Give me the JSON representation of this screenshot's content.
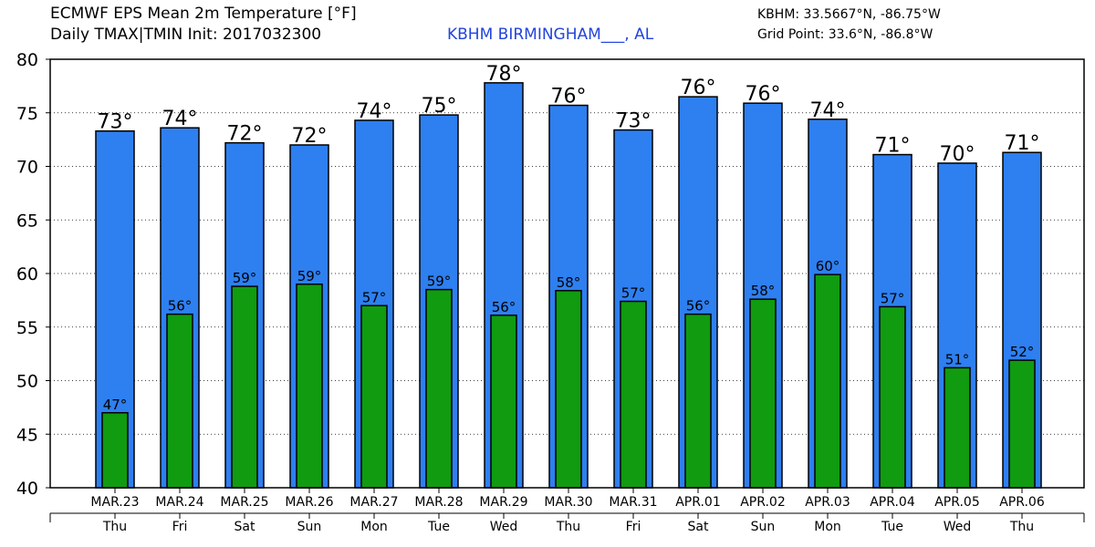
{
  "header": {
    "title_line1": "ECMWF EPS Mean 2m Temperature [°F]",
    "title_line2": "Daily TMAX|TMIN Init: 2017032300",
    "station": "KBHM BIRMINGHAM___, AL",
    "coords_station": "KBHM: 33.5667°N, -86.75°W",
    "coords_grid": "Grid Point: 33.6°N, -86.8°W"
  },
  "chart_data": {
    "type": "bar",
    "categories": [
      "MAR.23",
      "MAR.24",
      "MAR.25",
      "MAR.26",
      "MAR.27",
      "MAR.28",
      "MAR.29",
      "MAR.30",
      "MAR.31",
      "APR.01",
      "APR.02",
      "APR.03",
      "APR.04",
      "APR.05",
      "APR.06"
    ],
    "weekdays": [
      "Thu",
      "Fri",
      "Sat",
      "Sun",
      "Mon",
      "Tue",
      "Wed",
      "Thu",
      "Fri",
      "Sat",
      "Sun",
      "Mon",
      "Tue",
      "Wed",
      "Thu"
    ],
    "series": [
      {
        "values": [
          73.3,
          73.6,
          72.2,
          72.0,
          74.3,
          74.8,
          77.8,
          75.7,
          73.4,
          76.5,
          75.9,
          74.4,
          71.1,
          70.3,
          71.3
        ],
        "labels": [
          "73°",
          "74°",
          "72°",
          "72°",
          "74°",
          "75°",
          "78°",
          "76°",
          "73°",
          "76°",
          "76°",
          "74°",
          "71°",
          "70°",
          "71°"
        ],
        "color": "#2e7ff0"
      },
      {
        "values": [
          47.0,
          56.2,
          58.8,
          59.0,
          57.0,
          58.5,
          56.1,
          58.4,
          57.4,
          56.2,
          57.6,
          59.9,
          56.9,
          51.2,
          51.9
        ],
        "labels": [
          "47°",
          "56°",
          "59°",
          "59°",
          "57°",
          "59°",
          "56°",
          "58°",
          "57°",
          "56°",
          "58°",
          "60°",
          "57°",
          "51°",
          "52°"
        ],
        "color": "#109b10"
      }
    ],
    "yticks": [
      40,
      45,
      50,
      55,
      60,
      65,
      70,
      75,
      80
    ],
    "ylim": [
      40,
      80
    ],
    "grid": true
  }
}
